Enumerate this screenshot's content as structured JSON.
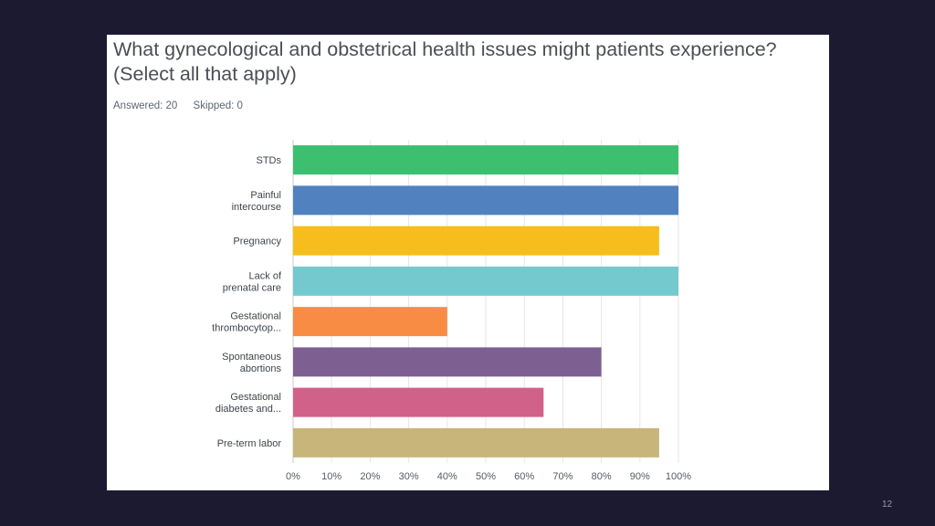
{
  "question": {
    "title": "What gynecological and obstetrical health issues might patients experience?\n(Select all that apply)",
    "answered": "Answered: 20",
    "skipped": "Skipped: 0"
  },
  "chart_data": {
    "type": "bar",
    "orientation": "horizontal",
    "categories": [
      [
        "STDs"
      ],
      [
        "Painful",
        "intercourse"
      ],
      [
        "Pregnancy"
      ],
      [
        "Lack of",
        "prenatal care"
      ],
      [
        "Gestational",
        "thrombocytop..."
      ],
      [
        "Spontaneous",
        "abortions"
      ],
      [
        "Gestational",
        "diabetes and..."
      ],
      [
        "Pre-term labor"
      ]
    ],
    "values": [
      100,
      100,
      95,
      100,
      40,
      80,
      65,
      95
    ],
    "unit": "%",
    "colors": [
      "#3dbf70",
      "#5182bf",
      "#f6bd1c",
      "#74c9cf",
      "#f98c45",
      "#7d5f92",
      "#d06189",
      "#c8b57a"
    ],
    "xlim": [
      0,
      100
    ],
    "xticks": [
      "0%",
      "10%",
      "20%",
      "30%",
      "40%",
      "50%",
      "60%",
      "70%",
      "80%",
      "90%",
      "100%"
    ],
    "grid": true
  },
  "page_number": "12"
}
